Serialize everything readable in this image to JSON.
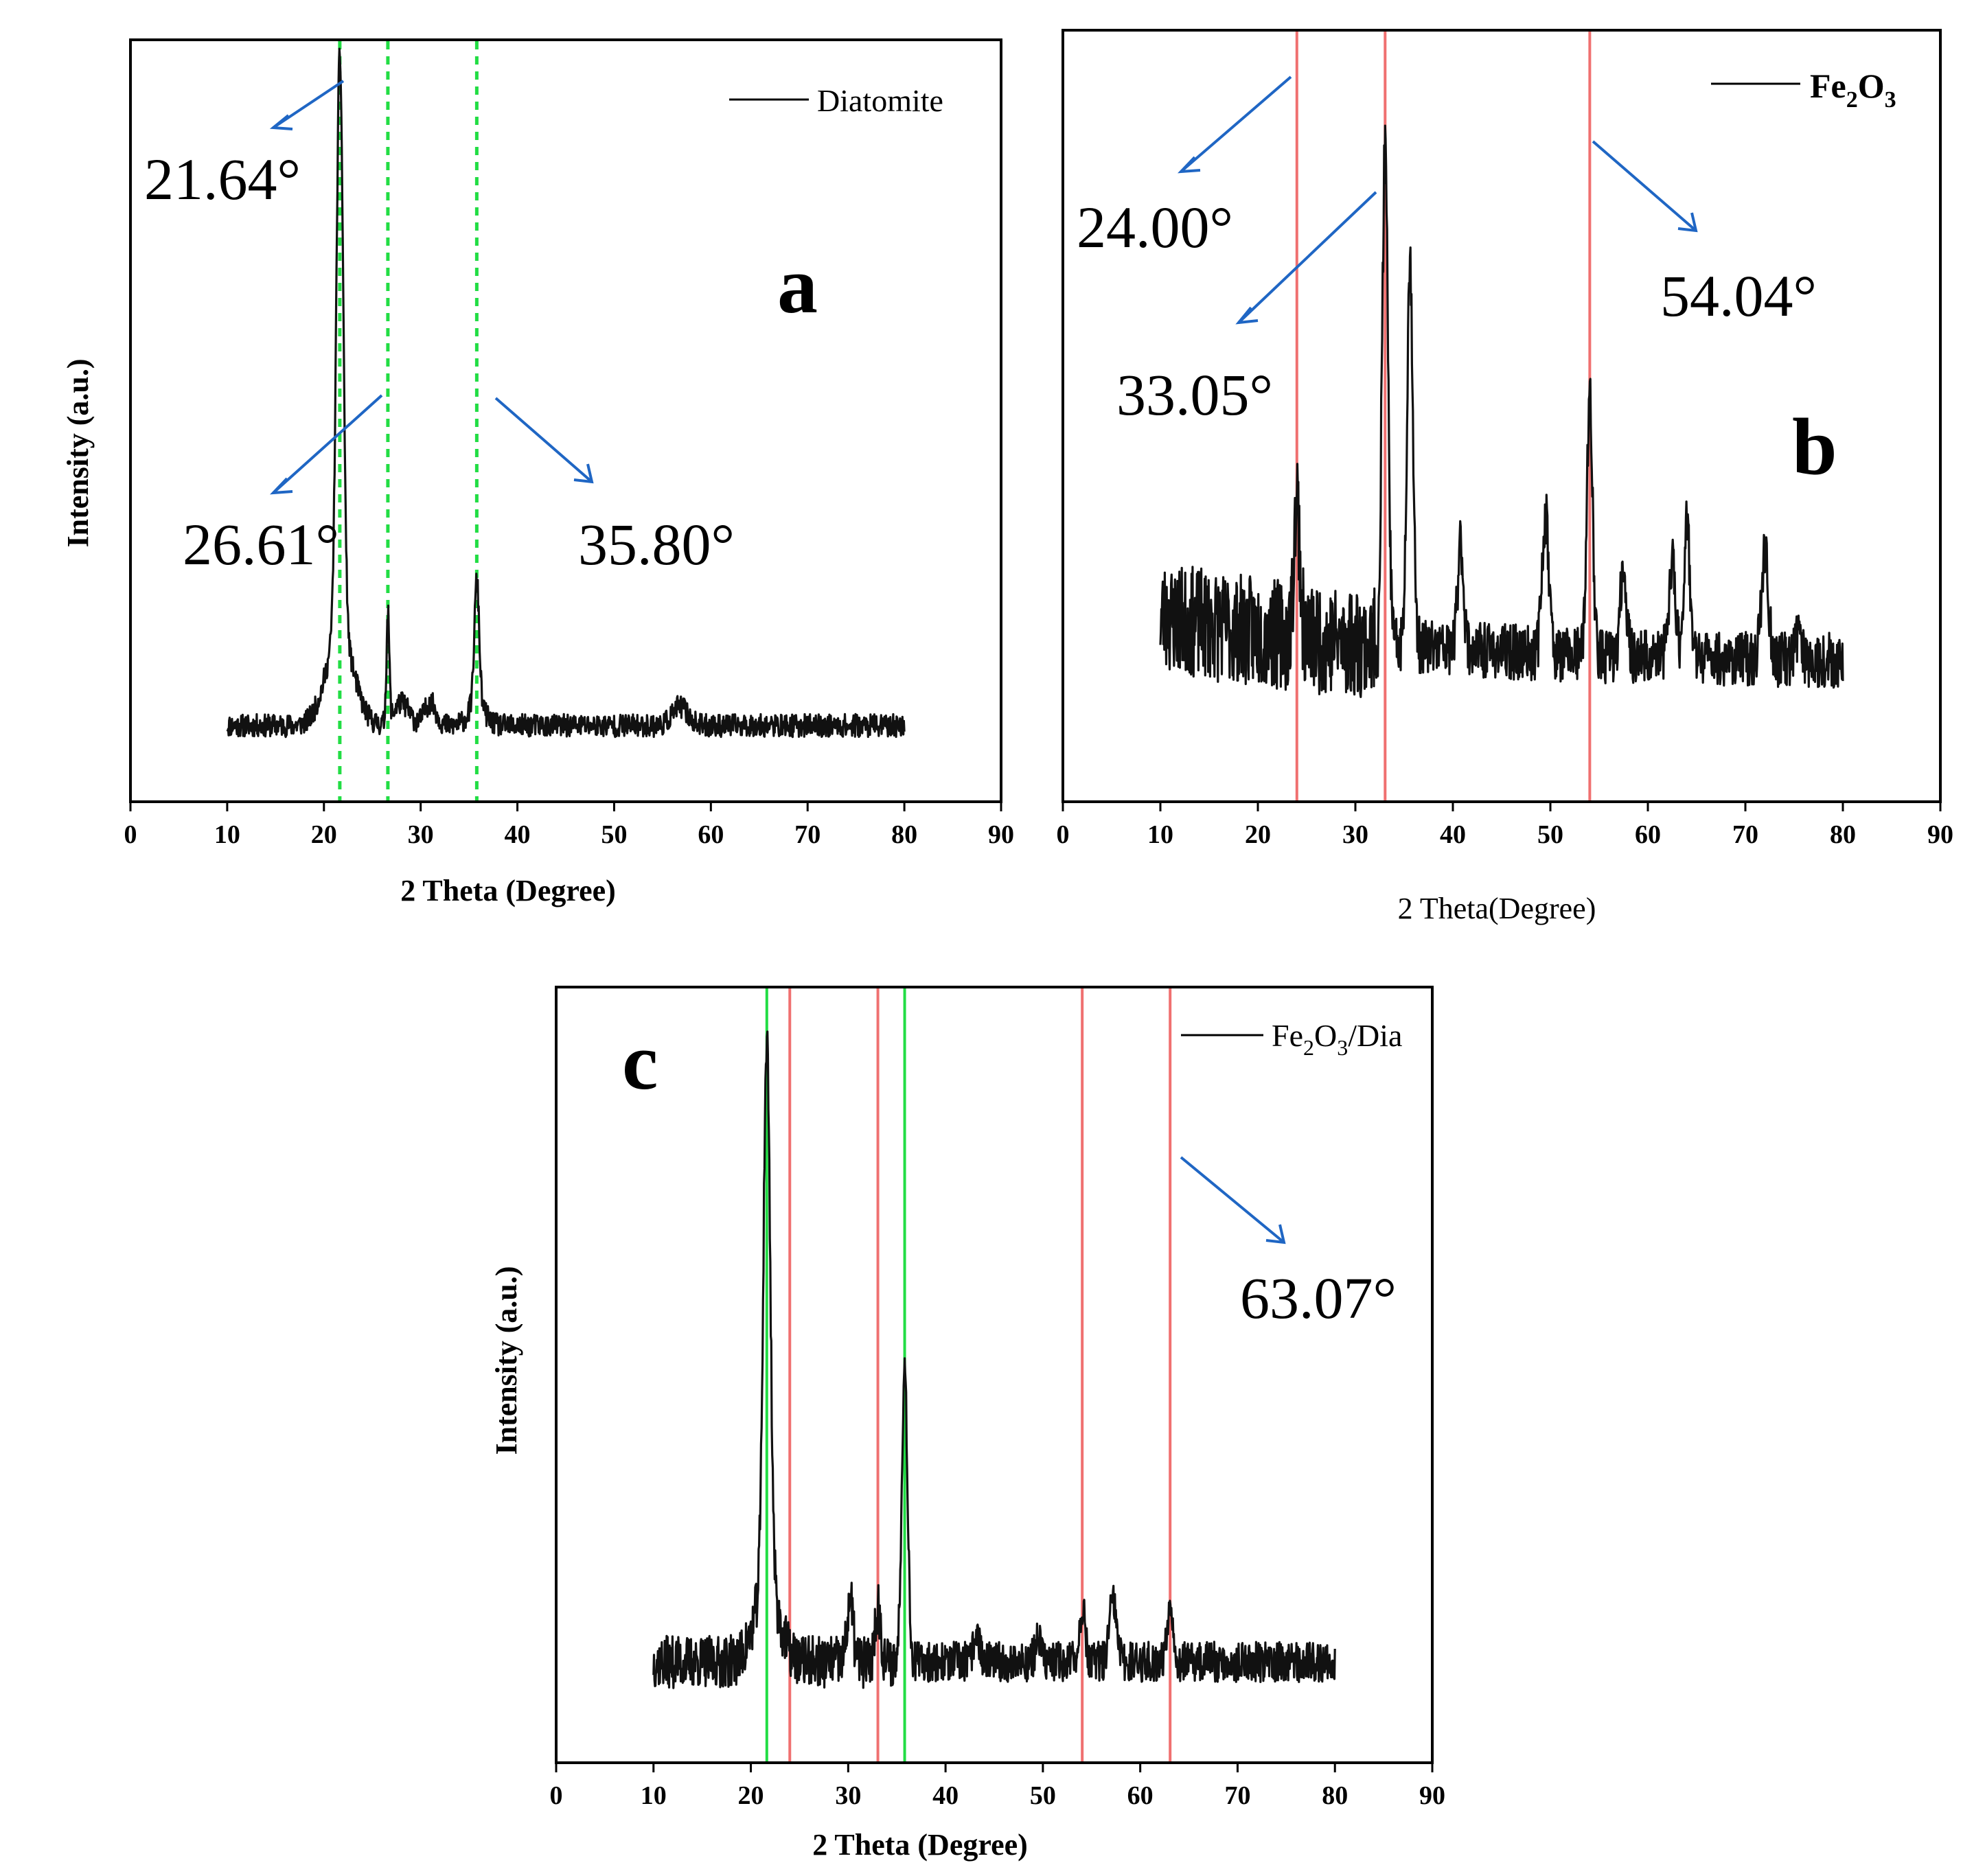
{
  "chart_data": [
    {
      "id": "a",
      "type": "line",
      "panel_label": "a",
      "legend": "Diatomite",
      "xlabel": "2 Theta (Degree)",
      "ylabel": "Intensity (a.u.)",
      "xlim": [
        0,
        90
      ],
      "xticks": [
        0,
        10,
        20,
        30,
        40,
        50,
        60,
        70,
        80,
        90
      ],
      "ylim": [
        0,
        100
      ],
      "x_range": [
        10,
        80
      ],
      "baseline": 10,
      "noise": 1.5,
      "seed": 11,
      "peaks": [
        {
          "x": 21.64,
          "height": 76,
          "width": 0.35,
          "broad": 12,
          "broad_width": 1.4
        },
        {
          "x": 26.61,
          "height": 14,
          "width": 0.15
        },
        {
          "x": 35.8,
          "height": 16,
          "width": 0.25,
          "broad": 3,
          "broad_width": 0.8
        },
        {
          "x": 28.0,
          "height": 3,
          "width": 0.8
        },
        {
          "x": 31.0,
          "height": 3,
          "width": 0.6
        },
        {
          "x": 56.8,
          "height": 2.5,
          "width": 0.8
        }
      ],
      "reference_lines": [
        {
          "x": 21.64,
          "color": "#22dd44",
          "style": "dashed"
        },
        {
          "x": 26.61,
          "color": "#22dd44",
          "style": "dashed"
        },
        {
          "x": 35.8,
          "color": "#22dd44",
          "style": "dashed"
        }
      ],
      "annotations": [
        {
          "text": "21.64°"
        },
        {
          "text": "26.61°"
        },
        {
          "text": "35.80°"
        }
      ]
    },
    {
      "id": "b",
      "type": "line",
      "panel_label": "b",
      "legend_main": "Fe",
      "legend_sub1": "2",
      "legend_mid": "O",
      "legend_sub2": "3",
      "xlabel": "2 Theta(Degree)",
      "ylabel": "",
      "xlim": [
        0,
        90
      ],
      "xticks": [
        0,
        10,
        20,
        30,
        40,
        50,
        60,
        70,
        80,
        90
      ],
      "ylim": [
        0,
        100
      ],
      "x_range": [
        10,
        80
      ],
      "baseline": 18,
      "noise": 4.5,
      "seed": 23,
      "peaks": [
        {
          "x": 24.0,
          "height": 18,
          "width": 0.3
        },
        {
          "x": 33.05,
          "height": 64,
          "width": 0.3
        },
        {
          "x": 35.6,
          "height": 50,
          "width": 0.3
        },
        {
          "x": 40.8,
          "height": 14,
          "width": 0.3
        },
        {
          "x": 49.5,
          "height": 18,
          "width": 0.35
        },
        {
          "x": 54.04,
          "height": 33,
          "width": 0.3
        },
        {
          "x": 57.5,
          "height": 12,
          "width": 0.3
        },
        {
          "x": 62.5,
          "height": 12,
          "width": 0.35
        },
        {
          "x": 64.0,
          "height": 18,
          "width": 0.3
        },
        {
          "x": 72.0,
          "height": 14,
          "width": 0.35
        },
        {
          "x": 75.5,
          "height": 4,
          "width": 0.3
        }
      ],
      "reference_lines": [
        {
          "x": 24.0,
          "color": "#f07070",
          "style": "solid"
        },
        {
          "x": 33.05,
          "color": "#f07070",
          "style": "solid"
        },
        {
          "x": 54.04,
          "color": "#f07070",
          "style": "solid"
        }
      ],
      "annotations": [
        {
          "text": "24.00°"
        },
        {
          "text": "33.05°"
        },
        {
          "text": "54.04°"
        }
      ]
    },
    {
      "id": "c",
      "type": "line",
      "panel_label": "c",
      "legend_main": "Fe",
      "legend_sub1": "2",
      "legend_mid": "O",
      "legend_sub2": "3",
      "legend_tail": "/Dia",
      "xlabel": "2 Theta (Degree)",
      "ylabel": "Intensity (a.u.)",
      "xlim": [
        0,
        90
      ],
      "xticks": [
        0,
        10,
        20,
        30,
        40,
        50,
        60,
        70,
        80,
        90
      ],
      "ylim": [
        0,
        100
      ],
      "x_range": [
        10,
        80
      ],
      "baseline": 13,
      "noise": 2.6,
      "seed": 37,
      "peaks": [
        {
          "x": 21.64,
          "height": 70,
          "width": 0.35,
          "broad": 10,
          "broad_width": 1.2
        },
        {
          "x": 35.8,
          "height": 38,
          "width": 0.3
        },
        {
          "x": 30.2,
          "height": 8,
          "width": 0.3
        },
        {
          "x": 33.05,
          "height": 7,
          "width": 0.3
        },
        {
          "x": 54.04,
          "height": 7,
          "width": 0.3
        },
        {
          "x": 57.2,
          "height": 8,
          "width": 0.35
        },
        {
          "x": 63.07,
          "height": 8,
          "width": 0.3
        },
        {
          "x": 43.2,
          "height": 4,
          "width": 0.3
        },
        {
          "x": 49.5,
          "height": 3,
          "width": 0.3
        }
      ],
      "reference_lines": [
        {
          "x": 21.64,
          "color": "#22dd44",
          "style": "solid"
        },
        {
          "x": 24.0,
          "color": "#f07070",
          "style": "solid"
        },
        {
          "x": 33.05,
          "color": "#f07070",
          "style": "solid"
        },
        {
          "x": 35.8,
          "color": "#22dd44",
          "style": "solid"
        },
        {
          "x": 54.04,
          "color": "#f07070",
          "style": "solid"
        },
        {
          "x": 63.07,
          "color": "#f07070",
          "style": "solid"
        }
      ],
      "annotations": [
        {
          "text": "63.07°"
        }
      ]
    }
  ]
}
